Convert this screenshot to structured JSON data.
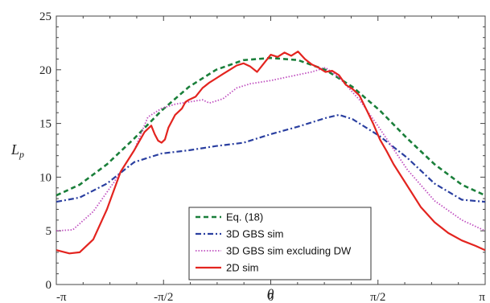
{
  "chart_data": {
    "type": "line",
    "title": "",
    "xlabel": "θ",
    "ylabel": "L",
    "ylabel_sub": "p",
    "xlim": [
      -3.14159,
      3.14159
    ],
    "ylim": [
      0,
      25
    ],
    "yticks": [
      0,
      5,
      10,
      15,
      20,
      25
    ],
    "xticks": [
      {
        "value": -3.14159,
        "label": "-π"
      },
      {
        "value": -1.5708,
        "label": "-π/2"
      },
      {
        "value": 0,
        "label": "0"
      },
      {
        "value": 1.5708,
        "label": "π/2"
      },
      {
        "value": 3.14159,
        "label": "π"
      }
    ],
    "grid": false,
    "legend_position": "bottom-center",
    "series": [
      {
        "name": "Eq. (18)",
        "color": "#1a7f3a",
        "style": "dashed",
        "x": [
          -3.14,
          -2.8,
          -2.4,
          -2.0,
          -1.6,
          -1.2,
          -0.8,
          -0.4,
          0.0,
          0.4,
          0.8,
          1.2,
          1.6,
          2.0,
          2.4,
          2.8,
          3.14
        ],
        "y": [
          8.3,
          9.3,
          11.2,
          13.6,
          16.2,
          18.4,
          20.0,
          20.9,
          21.1,
          20.9,
          20.0,
          18.4,
          16.2,
          13.6,
          11.2,
          9.3,
          8.3
        ]
      },
      {
        "name": "3D GBS sim",
        "color": "#2a3fa0",
        "style": "dashdot",
        "x": [
          -3.14,
          -2.8,
          -2.4,
          -2.0,
          -1.6,
          -1.2,
          -0.8,
          -0.4,
          0.0,
          0.4,
          0.8,
          1.0,
          1.2,
          1.6,
          2.0,
          2.4,
          2.8,
          3.14
        ],
        "y": [
          7.7,
          8.1,
          9.4,
          11.4,
          12.2,
          12.5,
          12.9,
          13.2,
          14.0,
          14.7,
          15.5,
          15.8,
          15.4,
          13.8,
          11.8,
          9.4,
          7.9,
          7.7
        ]
      },
      {
        "name": "3D GBS sim excluding DW",
        "color": "#c050c0",
        "style": "dotted",
        "x": [
          -3.14,
          -2.9,
          -2.6,
          -2.3,
          -2.0,
          -1.8,
          -1.6,
          -1.4,
          -1.2,
          -1.0,
          -0.9,
          -0.7,
          -0.5,
          -0.3,
          0.0,
          0.3,
          0.6,
          0.8,
          1.0,
          1.3,
          1.6,
          2.0,
          2.4,
          2.8,
          3.14
        ],
        "y": [
          5.0,
          5.1,
          6.8,
          9.5,
          12.5,
          15.6,
          16.4,
          16.8,
          17.0,
          17.2,
          16.9,
          17.3,
          18.3,
          18.7,
          19.0,
          19.4,
          19.8,
          20.2,
          19.3,
          17.2,
          14.5,
          10.7,
          7.8,
          6.0,
          5.0
        ]
      },
      {
        "name": "2D sim",
        "color": "#e3241f",
        "style": "solid",
        "x": [
          -3.14,
          -2.95,
          -2.8,
          -2.6,
          -2.4,
          -2.2,
          -2.0,
          -1.85,
          -1.75,
          -1.7,
          -1.65,
          -1.6,
          -1.55,
          -1.5,
          -1.4,
          -1.3,
          -1.25,
          -1.2,
          -1.1,
          -1.0,
          -0.9,
          -0.8,
          -0.7,
          -0.6,
          -0.5,
          -0.4,
          -0.3,
          -0.2,
          -0.1,
          0.0,
          0.1,
          0.2,
          0.3,
          0.4,
          0.5,
          0.6,
          0.7,
          0.8,
          0.9,
          1.0,
          1.1,
          1.2,
          1.3,
          1.4,
          1.5,
          1.6,
          1.7,
          1.8,
          2.0,
          2.2,
          2.4,
          2.6,
          2.8,
          3.0,
          3.14
        ],
        "y": [
          3.2,
          2.9,
          3.0,
          4.2,
          7.0,
          10.5,
          12.5,
          14.2,
          14.8,
          14.0,
          13.4,
          13.2,
          13.5,
          14.6,
          15.8,
          16.4,
          17.0,
          17.2,
          17.5,
          18.3,
          18.8,
          19.2,
          19.6,
          20.0,
          20.4,
          20.6,
          20.3,
          19.8,
          20.6,
          21.4,
          21.2,
          21.6,
          21.3,
          21.7,
          21.0,
          20.5,
          20.2,
          19.8,
          19.9,
          19.5,
          18.6,
          18.2,
          17.6,
          16.3,
          15.0,
          13.5,
          12.4,
          11.2,
          9.2,
          7.2,
          5.8,
          4.8,
          4.1,
          3.6,
          3.2
        ]
      }
    ]
  }
}
